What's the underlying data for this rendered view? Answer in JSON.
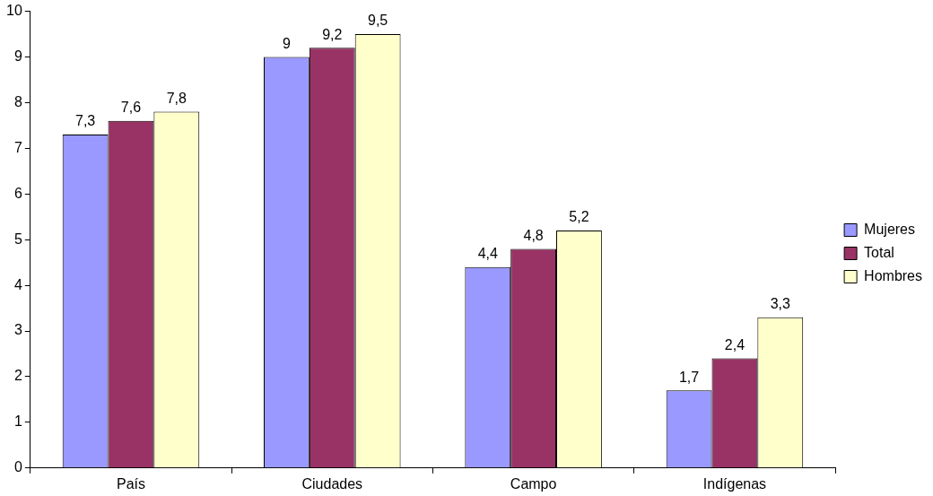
{
  "chart_data": {
    "type": "bar",
    "categories": [
      "País",
      "Ciudades",
      "Campo",
      "Indígenas"
    ],
    "series": [
      {
        "name": "Mujeres",
        "color": "#9999ff",
        "values": [
          7.3,
          9,
          4.4,
          1.7
        ],
        "value_labels": [
          "7,3",
          "9",
          "4,4",
          "1,7"
        ]
      },
      {
        "name": "Total",
        "color": "#993366",
        "values": [
          7.6,
          9.2,
          4.8,
          2.4
        ],
        "value_labels": [
          "7,6",
          "9,2",
          "4,8",
          "2,4"
        ]
      },
      {
        "name": "Hombres",
        "color": "#ffffcc",
        "values": [
          7.8,
          9.5,
          5.2,
          3.3
        ],
        "value_labels": [
          "7,8",
          "9,5",
          "5,2",
          "3,3"
        ]
      }
    ],
    "ylim": [
      0,
      10
    ],
    "yticks": [
      0,
      1,
      2,
      3,
      4,
      5,
      6,
      7,
      8,
      9,
      10
    ],
    "grid": false,
    "legend": "right"
  }
}
